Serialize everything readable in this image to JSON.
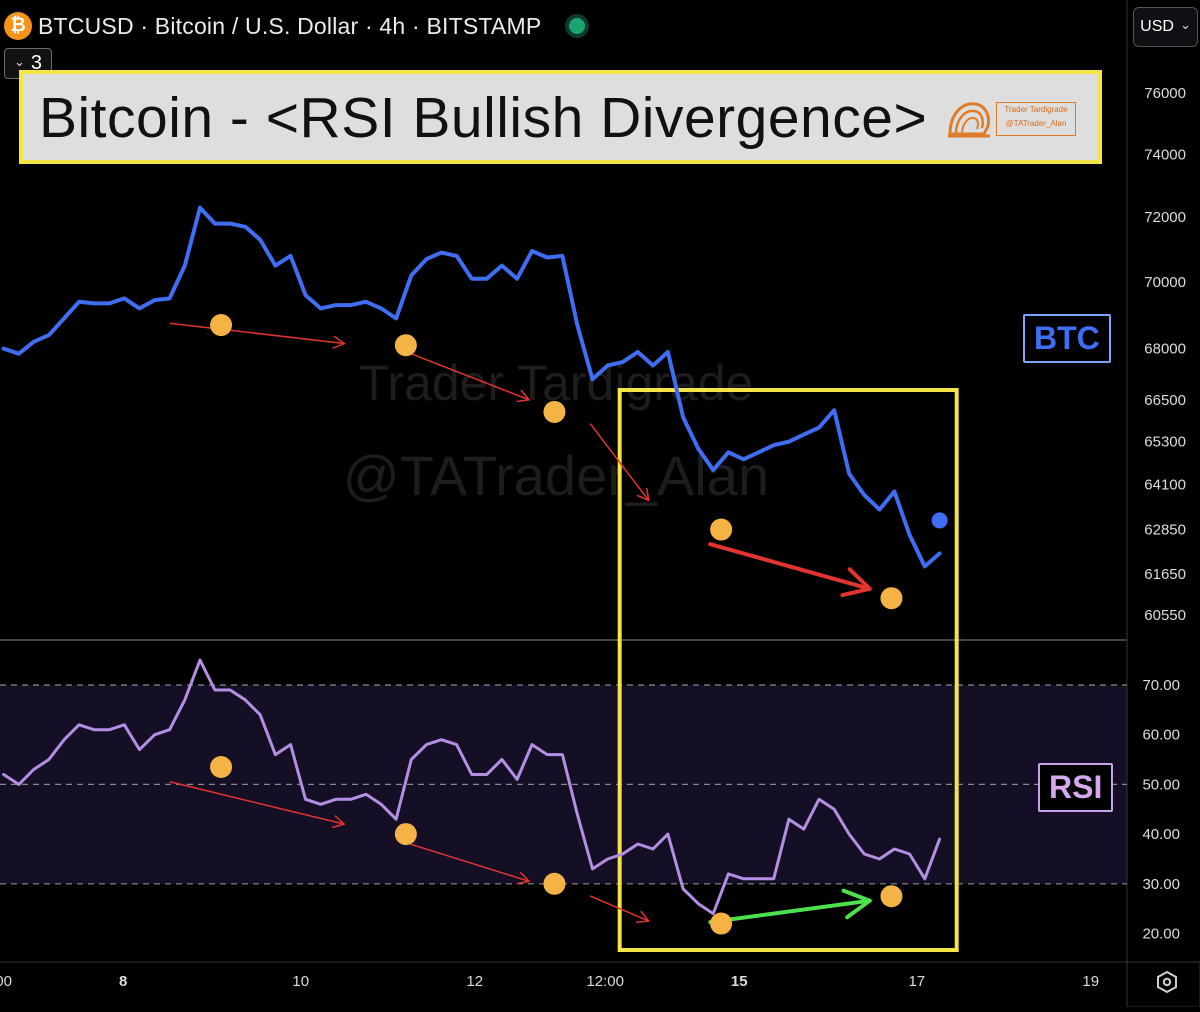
{
  "header": {
    "coin_glyph": "₿",
    "symbol_line": "BTCUSD · Bitcoin / U.S. Dollar · 4h · BITSTAMP",
    "indicator_count": "3",
    "currency": "USD",
    "chevron_down_glyph": "⌄"
  },
  "title": {
    "text": "Bitcoin - <RSI Bullish Divergence>",
    "logo_line1": "Trader Tardigrade",
    "logo_line2": "@TATrader_Alan"
  },
  "watermark": {
    "line1": "Trader Tardigrade",
    "line2": "@TATrader_Alan"
  },
  "tags": {
    "btc": "BTC",
    "rsi": "RSI"
  },
  "colors": {
    "price_line": "#3f6ef2",
    "rsi_line": "#b38ee3",
    "rsi_band": "#150f26",
    "pivot_dot": "#f5b245",
    "highlight_box": "#f4e445",
    "arrow_red": "#e3342f",
    "arrow_green": "#4be24d",
    "grid": "#6e6e6e",
    "axis_text": "#dcdcdc"
  },
  "chart_data": [
    {
      "type": "line",
      "name": "BTC price",
      "y_ticks": [
        76000,
        74000,
        72000,
        70000,
        68000,
        66500,
        65300,
        64100,
        62850,
        61650,
        60550
      ],
      "y_tick_labels": [
        "76000",
        "74000",
        "72000",
        "70000",
        "68000",
        "66500",
        "65300",
        "64100",
        "62850",
        "61650",
        "60550"
      ],
      "x": [
        0,
        0.42,
        0.83,
        1.25,
        1.67,
        2.08,
        2.5,
        2.92,
        3.33,
        3.75,
        4.17,
        4.58,
        5.0,
        5.42,
        5.83,
        6.25,
        6.67,
        7.08,
        7.5,
        7.92,
        8.33,
        8.75,
        9.17,
        9.58,
        10.0,
        10.42,
        10.83,
        11.25,
        11.67,
        12.08,
        12.5,
        12.92,
        13.33,
        13.75,
        14.17,
        14.58,
        15.0,
        15.42,
        15.83,
        16.25,
        16.67,
        17.08,
        17.5,
        17.92,
        18.33,
        18.75,
        19.17,
        19.58,
        20.0,
        20.42,
        20.83,
        21.25,
        21.67,
        22.08,
        22.5,
        22.92,
        23.33,
        23.75,
        24.17,
        24.58,
        25.0,
        25.42,
        25.83
      ],
      "values": [
        68000,
        67850,
        68200,
        68400,
        68900,
        69400,
        69350,
        69350,
        69500,
        69200,
        69450,
        69500,
        70500,
        72300,
        71800,
        71800,
        71700,
        71300,
        70500,
        70800,
        69600,
        69200,
        69300,
        69300,
        69400,
        69200,
        68900,
        70200,
        70700,
        70900,
        70800,
        70100,
        70100,
        70500,
        70100,
        70950,
        70750,
        70800,
        68700,
        67100,
        67500,
        67600,
        67900,
        67500,
        67900,
        66000,
        65100,
        64500,
        65000,
        64800,
        65000,
        65200,
        65300,
        65500,
        65700,
        66200,
        64400,
        63800,
        63400,
        63900,
        62700,
        61850,
        62200
      ],
      "last_value": 63100,
      "pivots": [
        {
          "x": 6.0,
          "y": 68700
        },
        {
          "x": 11.1,
          "y": 68100
        },
        {
          "x": 15.2,
          "y": 66150
        },
        {
          "x": 19.8,
          "y": 62850
        },
        {
          "x": 24.5,
          "y": 61000
        }
      ]
    },
    {
      "type": "line",
      "name": "RSI",
      "y_ticks": [
        70,
        60,
        50,
        40,
        30,
        20
      ],
      "y_tick_labels": [
        "70.00",
        "60.00",
        "50.00",
        "40.00",
        "30.00",
        "20.00"
      ],
      "band": [
        30,
        70
      ],
      "x": [
        0,
        0.42,
        0.83,
        1.25,
        1.67,
        2.08,
        2.5,
        2.92,
        3.33,
        3.75,
        4.17,
        4.58,
        5.0,
        5.42,
        5.83,
        6.25,
        6.67,
        7.08,
        7.5,
        7.92,
        8.33,
        8.75,
        9.17,
        9.58,
        10.0,
        10.42,
        10.83,
        11.25,
        11.67,
        12.08,
        12.5,
        12.92,
        13.33,
        13.75,
        14.17,
        14.58,
        15.0,
        15.42,
        15.83,
        16.25,
        16.67,
        17.08,
        17.5,
        17.92,
        18.33,
        18.75,
        19.17,
        19.58,
        20.0,
        20.42,
        20.83,
        21.25,
        21.67,
        22.08,
        22.5,
        22.92,
        23.33,
        23.75,
        24.17,
        24.58,
        25.0,
        25.42,
        25.83
      ],
      "values": [
        52,
        50,
        53,
        55,
        59,
        62,
        61,
        61,
        62,
        57,
        60,
        61,
        67,
        75,
        69,
        69,
        67,
        64,
        56,
        58,
        47,
        46,
        47,
        47,
        48,
        46,
        43,
        55,
        58,
        59,
        58,
        52,
        52,
        55,
        51,
        58,
        56,
        56,
        44,
        33,
        35,
        36,
        38,
        37,
        40,
        29,
        26,
        24,
        32,
        31,
        31,
        31,
        43,
        41,
        47,
        45,
        40,
        36,
        35,
        37,
        36,
        31,
        39
      ],
      "pivots": [
        {
          "x": 6.0,
          "y": 53.5
        },
        {
          "x": 11.1,
          "y": 40
        },
        {
          "x": 15.2,
          "y": 30
        },
        {
          "x": 19.8,
          "y": 22
        },
        {
          "x": 24.5,
          "y": 27.5
        }
      ]
    }
  ],
  "x_axis": {
    "ticks": [
      {
        "x": 0,
        "label": "00",
        "bold": false
      },
      {
        "x": 3.3,
        "label": "8",
        "bold": true
      },
      {
        "x": 8.2,
        "label": "10",
        "bold": false
      },
      {
        "x": 13.0,
        "label": "12",
        "bold": false
      },
      {
        "x": 16.6,
        "label": "12:00",
        "bold": false
      },
      {
        "x": 20.3,
        "label": "15",
        "bold": true
      },
      {
        "x": 25.2,
        "label": "17",
        "bold": false
      },
      {
        "x": 30.0,
        "label": "19",
        "bold": false
      }
    ],
    "x_range": [
      -0.1,
      31.0
    ]
  },
  "annotations": {
    "highlight_window": [
      17.0,
      26.3
    ],
    "price_arrows": [
      {
        "x1": 4.6,
        "y1": 68750,
        "x2": 9.4,
        "y2": 68150,
        "color": "red",
        "bold": false
      },
      {
        "x1": 11.0,
        "y1": 67950,
        "x2": 14.5,
        "y2": 66500,
        "color": "red",
        "bold": false
      },
      {
        "x1": 16.2,
        "y1": 65800,
        "x2": 17.8,
        "y2": 63650,
        "color": "red",
        "bold": false
      },
      {
        "x1": 19.5,
        "y1": 62450,
        "x2": 23.9,
        "y2": 61250,
        "color": "red",
        "bold": true
      }
    ],
    "rsi_arrows": [
      {
        "x1": 4.6,
        "y1": 50.5,
        "x2": 9.4,
        "y2": 42,
        "color": "red",
        "bold": false
      },
      {
        "x1": 11.0,
        "y1": 38.5,
        "x2": 14.5,
        "y2": 30.5,
        "color": "red",
        "bold": false
      },
      {
        "x1": 16.2,
        "y1": 27.5,
        "x2": 17.8,
        "y2": 22.5,
        "color": "red",
        "bold": false
      },
      {
        "x1": 19.5,
        "y1": 22.3,
        "x2": 23.9,
        "y2": 26.6,
        "color": "green",
        "bold": true
      }
    ]
  }
}
